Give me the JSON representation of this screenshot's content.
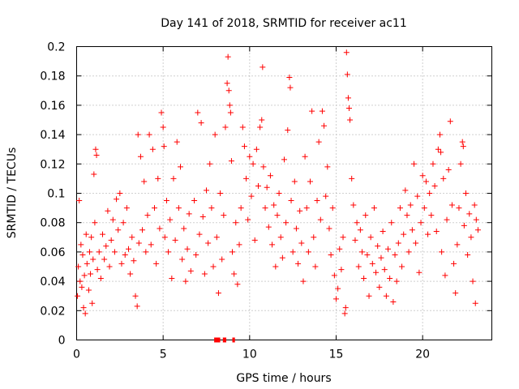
{
  "chart_data": {
    "type": "scatter",
    "title": "Day 141 of 2018, SRMTID for receiver ac11",
    "xlabel": "GPS time / hours",
    "ylabel": "SRMTID / TECUs",
    "xlim": [
      0,
      24
    ],
    "ylim": [
      0,
      0.2
    ],
    "xticks": [
      0,
      5,
      10,
      15,
      20
    ],
    "xtick_labels": [
      "0",
      "5",
      "10",
      "15",
      "20"
    ],
    "yticks": [
      0,
      0.02,
      0.04,
      0.06,
      0.08,
      0.1,
      0.12,
      0.14,
      0.16,
      0.18,
      0.2
    ],
    "ytick_labels": [
      "0",
      "0.02",
      "0.04",
      "0.06",
      "0.08",
      "0.1",
      "0.12",
      "0.14",
      "0.16",
      "0.18",
      "0.2"
    ],
    "grid": true,
    "marker": "+",
    "color": "#ff0000",
    "series": [
      {
        "name": "SRMTID",
        "points": [
          [
            0.05,
            0.03
          ],
          [
            0.1,
            0.05
          ],
          [
            0.15,
            0.095
          ],
          [
            0.2,
            0.04
          ],
          [
            0.25,
            0.065
          ],
          [
            0.3,
            0.036
          ],
          [
            0.35,
            0.058
          ],
          [
            0.4,
            0.022
          ],
          [
            0.45,
            0.044
          ],
          [
            0.5,
            0.018
          ],
          [
            0.55,
            0.072
          ],
          [
            0.6,
            0.052
          ],
          [
            0.7,
            0.034
          ],
          [
            0.75,
            0.06
          ],
          [
            0.8,
            0.045
          ],
          [
            0.85,
            0.07
          ],
          [
            0.9,
            0.025
          ],
          [
            0.95,
            0.055
          ],
          [
            1.0,
            0.113
          ],
          [
            1.05,
            0.08
          ],
          [
            1.1,
            0.13
          ],
          [
            1.15,
            0.126
          ],
          [
            1.2,
            0.048
          ],
          [
            1.3,
            0.06
          ],
          [
            1.4,
            0.042
          ],
          [
            1.5,
            0.072
          ],
          [
            1.6,
            0.055
          ],
          [
            1.7,
            0.064
          ],
          [
            1.8,
            0.088
          ],
          [
            1.9,
            0.05
          ],
          [
            2.0,
            0.068
          ],
          [
            2.1,
            0.082
          ],
          [
            2.2,
            0.06
          ],
          [
            2.3,
            0.096
          ],
          [
            2.4,
            0.075
          ],
          [
            2.5,
            0.1
          ],
          [
            2.6,
            0.052
          ],
          [
            2.7,
            0.08
          ],
          [
            2.8,
            0.058
          ],
          [
            2.9,
            0.09
          ],
          [
            3.0,
            0.062
          ],
          [
            3.1,
            0.045
          ],
          [
            3.2,
            0.07
          ],
          [
            3.3,
            0.054
          ],
          [
            3.4,
            0.03
          ],
          [
            3.5,
            0.023
          ],
          [
            3.55,
            0.14
          ],
          [
            3.6,
            0.066
          ],
          [
            3.7,
            0.125
          ],
          [
            3.8,
            0.075
          ],
          [
            3.9,
            0.108
          ],
          [
            4.0,
            0.06
          ],
          [
            4.1,
            0.085
          ],
          [
            4.2,
            0.14
          ],
          [
            4.3,
            0.065
          ],
          [
            4.4,
            0.13
          ],
          [
            4.5,
            0.09
          ],
          [
            4.6,
            0.052
          ],
          [
            4.7,
            0.11
          ],
          [
            4.8,
            0.076
          ],
          [
            4.9,
            0.155
          ],
          [
            5.0,
            0.145
          ],
          [
            5.05,
            0.132
          ],
          [
            5.1,
            0.07
          ],
          [
            5.2,
            0.095
          ],
          [
            5.3,
            0.06
          ],
          [
            5.4,
            0.082
          ],
          [
            5.5,
            0.042
          ],
          [
            5.6,
            0.11
          ],
          [
            5.7,
            0.068
          ],
          [
            5.8,
            0.135
          ],
          [
            5.9,
            0.09
          ],
          [
            6.0,
            0.118
          ],
          [
            6.1,
            0.055
          ],
          [
            6.2,
            0.076
          ],
          [
            6.3,
            0.04
          ],
          [
            6.4,
            0.062
          ],
          [
            6.5,
            0.086
          ],
          [
            6.6,
            0.047
          ],
          [
            6.8,
            0.095
          ],
          [
            6.9,
            0.058
          ],
          [
            7.0,
            0.155
          ],
          [
            7.1,
            0.072
          ],
          [
            7.2,
            0.148
          ],
          [
            7.3,
            0.084
          ],
          [
            7.4,
            0.045
          ],
          [
            7.5,
            0.102
          ],
          [
            7.6,
            0.066
          ],
          [
            7.7,
            0.12
          ],
          [
            7.8,
            0.09
          ],
          [
            7.9,
            0.05
          ],
          [
            8.0,
            0.14
          ],
          [
            8.1,
            0.07
          ],
          [
            8.2,
            0.032
          ],
          [
            8.3,
            0.1
          ],
          [
            8.4,
            0.055
          ],
          [
            8.5,
            0.085
          ],
          [
            8.6,
            0.145
          ],
          [
            8.7,
            0.175
          ],
          [
            8.75,
            0.193
          ],
          [
            8.8,
            0.17
          ],
          [
            8.85,
            0.16
          ],
          [
            8.9,
            0.155
          ],
          [
            8.95,
            0.122
          ],
          [
            9.0,
            0.06
          ],
          [
            9.1,
            0.045
          ],
          [
            9.2,
            0.08
          ],
          [
            9.3,
            0.038
          ],
          [
            9.4,
            0.065
          ],
          [
            9.5,
            0.09
          ],
          [
            9.6,
            0.145
          ],
          [
            9.7,
            0.132
          ],
          [
            9.8,
            0.11
          ],
          [
            9.9,
            0.082
          ],
          [
            10.0,
            0.125
          ],
          [
            10.1,
            0.098
          ],
          [
            10.2,
            0.12
          ],
          [
            10.3,
            0.068
          ],
          [
            10.4,
            0.13
          ],
          [
            10.5,
            0.105
          ],
          [
            10.6,
            0.145
          ],
          [
            10.7,
            0.15
          ],
          [
            10.75,
            0.186
          ],
          [
            10.8,
            0.118
          ],
          [
            10.9,
            0.09
          ],
          [
            11.0,
            0.104
          ],
          [
            11.1,
            0.077
          ],
          [
            11.2,
            0.112
          ],
          [
            11.3,
            0.065
          ],
          [
            11.4,
            0.092
          ],
          [
            11.5,
            0.05
          ],
          [
            11.6,
            0.085
          ],
          [
            11.7,
            0.1
          ],
          [
            11.8,
            0.07
          ],
          [
            11.9,
            0.056
          ],
          [
            12.0,
            0.123
          ],
          [
            12.1,
            0.08
          ],
          [
            12.2,
            0.143
          ],
          [
            12.3,
            0.179
          ],
          [
            12.35,
            0.172
          ],
          [
            12.4,
            0.095
          ],
          [
            12.5,
            0.06
          ],
          [
            12.6,
            0.108
          ],
          [
            12.7,
            0.076
          ],
          [
            12.8,
            0.052
          ],
          [
            12.9,
            0.088
          ],
          [
            13.0,
            0.066
          ],
          [
            13.1,
            0.04
          ],
          [
            13.2,
            0.125
          ],
          [
            13.3,
            0.09
          ],
          [
            13.4,
            0.06
          ],
          [
            13.5,
            0.108
          ],
          [
            13.6,
            0.156
          ],
          [
            13.7,
            0.07
          ],
          [
            13.8,
            0.05
          ],
          [
            13.9,
            0.095
          ],
          [
            14.0,
            0.135
          ],
          [
            14.1,
            0.082
          ],
          [
            14.2,
            0.156
          ],
          [
            14.3,
            0.146
          ],
          [
            14.4,
            0.098
          ],
          [
            14.5,
            0.118
          ],
          [
            14.6,
            0.076
          ],
          [
            14.7,
            0.058
          ],
          [
            14.8,
            0.09
          ],
          [
            14.9,
            0.044
          ],
          [
            15.0,
            0.028
          ],
          [
            15.1,
            0.035
          ],
          [
            15.2,
            0.062
          ],
          [
            15.3,
            0.048
          ],
          [
            15.4,
            0.07
          ],
          [
            15.5,
            0.018
          ],
          [
            15.55,
            0.022
          ],
          [
            15.6,
            0.196
          ],
          [
            15.65,
            0.181
          ],
          [
            15.7,
            0.165
          ],
          [
            15.75,
            0.158
          ],
          [
            15.8,
            0.15
          ],
          [
            15.9,
            0.11
          ],
          [
            16.0,
            0.092
          ],
          [
            16.1,
            0.068
          ],
          [
            16.2,
            0.08
          ],
          [
            16.3,
            0.05
          ],
          [
            16.4,
            0.075
          ],
          [
            16.5,
            0.06
          ],
          [
            16.6,
            0.042
          ],
          [
            16.7,
            0.085
          ],
          [
            16.8,
            0.058
          ],
          [
            16.9,
            0.03
          ],
          [
            17.0,
            0.07
          ],
          [
            17.1,
            0.052
          ],
          [
            17.2,
            0.09
          ],
          [
            17.3,
            0.046
          ],
          [
            17.4,
            0.064
          ],
          [
            17.5,
            0.036
          ],
          [
            17.6,
            0.056
          ],
          [
            17.7,
            0.074
          ],
          [
            17.8,
            0.048
          ],
          [
            17.9,
            0.03
          ],
          [
            18.0,
            0.062
          ],
          [
            18.1,
            0.042
          ],
          [
            18.2,
            0.08
          ],
          [
            18.3,
            0.026
          ],
          [
            18.4,
            0.058
          ],
          [
            18.5,
            0.04
          ],
          [
            18.6,
            0.066
          ],
          [
            18.7,
            0.09
          ],
          [
            18.8,
            0.05
          ],
          [
            18.9,
            0.072
          ],
          [
            19.0,
            0.102
          ],
          [
            19.1,
            0.085
          ],
          [
            19.2,
            0.06
          ],
          [
            19.3,
            0.092
          ],
          [
            19.4,
            0.075
          ],
          [
            19.5,
            0.12
          ],
          [
            19.6,
            0.066
          ],
          [
            19.7,
            0.098
          ],
          [
            19.8,
            0.046
          ],
          [
            19.9,
            0.08
          ],
          [
            20.0,
            0.112
          ],
          [
            20.1,
            0.09
          ],
          [
            20.2,
            0.108
          ],
          [
            20.3,
            0.072
          ],
          [
            20.4,
            0.1
          ],
          [
            20.5,
            0.085
          ],
          [
            20.6,
            0.12
          ],
          [
            20.7,
            0.105
          ],
          [
            20.8,
            0.074
          ],
          [
            20.9,
            0.13
          ],
          [
            21.0,
            0.14
          ],
          [
            21.05,
            0.128
          ],
          [
            21.1,
            0.06
          ],
          [
            21.2,
            0.11
          ],
          [
            21.3,
            0.044
          ],
          [
            21.4,
            0.082
          ],
          [
            21.5,
            0.116
          ],
          [
            21.6,
            0.149
          ],
          [
            21.7,
            0.092
          ],
          [
            21.8,
            0.052
          ],
          [
            21.9,
            0.032
          ],
          [
            22.0,
            0.065
          ],
          [
            22.1,
            0.09
          ],
          [
            22.2,
            0.12
          ],
          [
            22.3,
            0.135
          ],
          [
            22.35,
            0.132
          ],
          [
            22.4,
            0.078
          ],
          [
            22.5,
            0.1
          ],
          [
            22.6,
            0.058
          ],
          [
            22.7,
            0.086
          ],
          [
            22.8,
            0.07
          ],
          [
            22.9,
            0.04
          ],
          [
            23.0,
            0.092
          ],
          [
            23.05,
            0.025
          ],
          [
            23.1,
            0.082
          ],
          [
            23.2,
            0.075
          ]
        ]
      }
    ],
    "gap_markers": [
      {
        "x_start": 7.95,
        "x_end": 8.3,
        "y": 0
      },
      {
        "x_start": 8.45,
        "x_end": 8.65,
        "y": 0
      },
      {
        "x_start": 9.0,
        "x_end": 9.15,
        "y": 0
      }
    ]
  }
}
